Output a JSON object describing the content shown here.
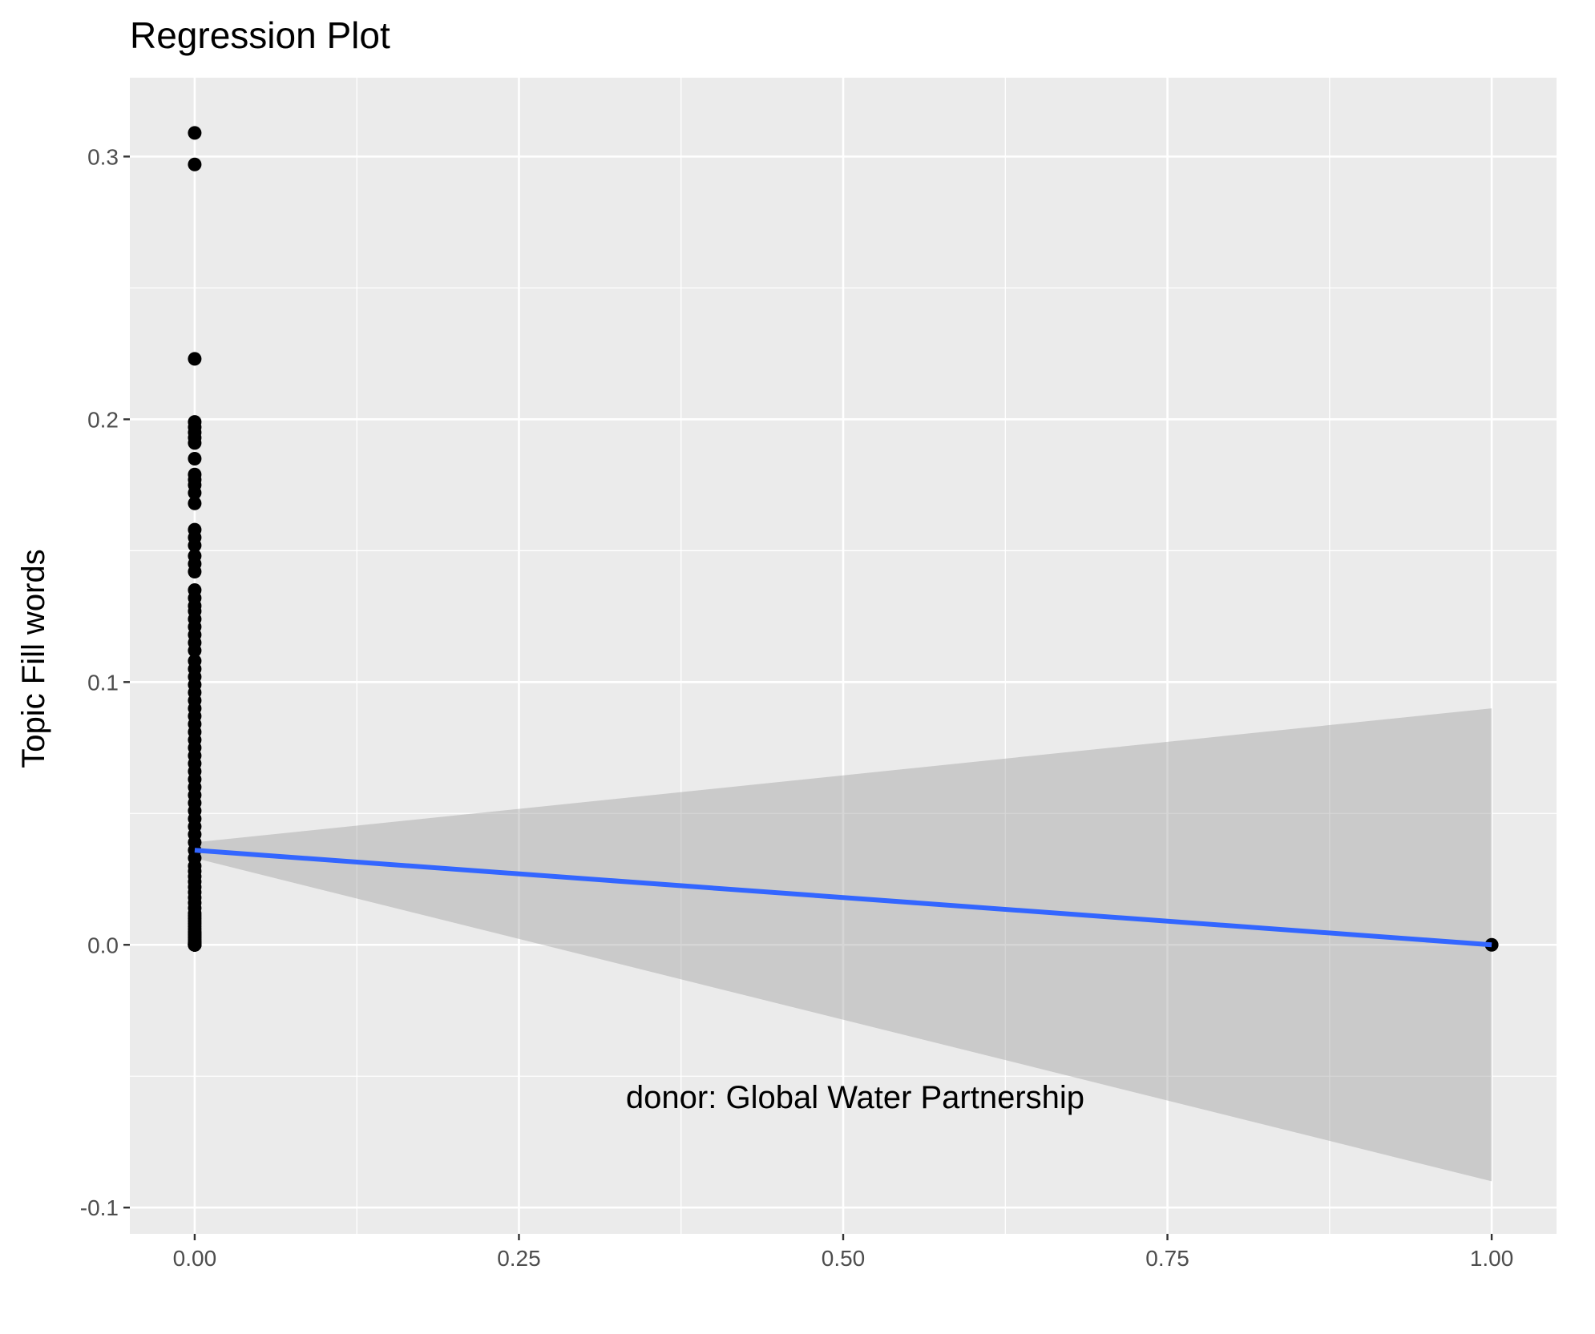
{
  "chart_data": {
    "type": "scatter",
    "title": "Regression Plot",
    "xlabel": "donor: Global Water Partnership",
    "ylabel": "Topic Fill words",
    "xlim": [
      -0.05,
      1.05
    ],
    "ylim": [
      -0.11,
      0.33
    ],
    "x_ticks": [
      0.0,
      0.25,
      0.5,
      0.75,
      1.0
    ],
    "x_tick_labels": [
      "0.00",
      "0.25",
      "0.50",
      "0.75",
      "1.00"
    ],
    "y_ticks": [
      -0.1,
      0.0,
      0.1,
      0.2,
      0.3
    ],
    "y_tick_labels": [
      "-0.1",
      "0.0",
      "0.1",
      "0.2",
      "0.3"
    ],
    "grid": true,
    "legend": "none",
    "points": {
      "x": [
        0,
        0,
        0,
        0,
        0,
        0,
        0,
        0,
        0,
        0,
        0,
        0,
        0,
        0,
        0,
        0,
        0,
        0,
        0,
        0,
        0,
        0,
        0,
        0,
        0,
        0,
        0,
        0,
        0,
        0,
        0,
        0,
        0,
        0,
        0,
        0,
        0,
        0,
        0,
        0,
        0,
        0,
        0,
        0,
        0,
        0,
        0,
        0,
        0,
        0,
        0,
        0,
        0,
        0,
        0,
        0,
        0,
        0,
        0,
        0,
        0,
        0,
        0,
        0,
        0,
        0,
        0,
        0,
        0,
        0,
        0,
        0,
        0,
        0,
        0,
        0,
        0,
        0,
        0,
        0,
        0,
        0,
        0,
        0,
        0,
        0,
        0,
        0,
        0,
        0,
        0,
        0,
        0,
        0,
        0,
        0,
        1
      ],
      "y": [
        0.309,
        0.297,
        0.223,
        0.199,
        0.197,
        0.195,
        0.193,
        0.191,
        0.185,
        0.179,
        0.177,
        0.175,
        0.172,
        0.168,
        0.158,
        0.155,
        0.152,
        0.148,
        0.145,
        0.142,
        0.135,
        0.132,
        0.129,
        0.127,
        0.124,
        0.121,
        0.118,
        0.115,
        0.112,
        0.108,
        0.105,
        0.102,
        0.099,
        0.096,
        0.093,
        0.09,
        0.087,
        0.084,
        0.081,
        0.078,
        0.075,
        0.072,
        0.069,
        0.066,
        0.063,
        0.06,
        0.057,
        0.054,
        0.051,
        0.048,
        0.045,
        0.042,
        0.039,
        0.036,
        0.033,
        0.03,
        0.028,
        0.026,
        0.024,
        0.022,
        0.02,
        0.018,
        0.016,
        0.014,
        0.012,
        0.011,
        0.01,
        0.009,
        0.008,
        0.007,
        0.006,
        0.005,
        0.0045,
        0.004,
        0.0035,
        0.003,
        0.0025,
        0.002,
        0.0015,
        0.001,
        0.0008,
        0.0006,
        0.0005,
        0.0004,
        0.0003,
        0.0002,
        0.0001,
        0.0,
        0.0,
        0.0,
        0.0,
        0.0,
        0.0,
        0.0,
        0.0,
        0.0,
        0.0
      ]
    },
    "regression_line": {
      "x": [
        0,
        1
      ],
      "y": [
        0.036,
        0.0
      ]
    },
    "confidence_band": {
      "x": [
        0,
        1
      ],
      "upper": [
        0.039,
        0.09
      ],
      "lower": [
        0.033,
        -0.09
      ]
    },
    "colors": {
      "panel": "#ebebeb",
      "grid_major": "#ffffff",
      "points": "#000000",
      "line": "#3366ff",
      "band": "#999999"
    }
  }
}
